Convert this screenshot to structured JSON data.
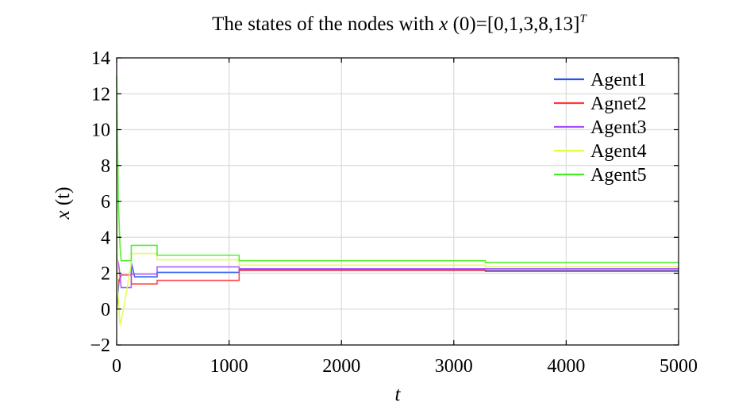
{
  "chart_data": {
    "type": "line",
    "title_main": "The states of the nodes with ",
    "title_var": "x",
    "title_rest": " (0)=[0,1,3,8,13]",
    "title_sup": "T",
    "xlabel": "t",
    "ylabel_var": "x",
    "ylabel_rest": " (t)",
    "xlim": [
      0,
      5000
    ],
    "ylim": [
      -2,
      14
    ],
    "xticks": [
      0,
      1000,
      2000,
      3000,
      4000,
      5000
    ],
    "yticks": [
      -2,
      0,
      2,
      4,
      6,
      8,
      10,
      12,
      14
    ],
    "ytick_labels": [
      "−2",
      "0",
      "2",
      "4",
      "6",
      "8",
      "10",
      "12",
      "14"
    ],
    "grid": true,
    "legend_position": "top-right",
    "series": [
      {
        "name": "Agent1",
        "color": "#2255ee",
        "points": [
          [
            0,
            0
          ],
          [
            20,
            1.5
          ],
          [
            40,
            1.9
          ],
          [
            130,
            1.9
          ],
          [
            130,
            2.6
          ],
          [
            160,
            1.8
          ],
          [
            360,
            1.8
          ],
          [
            360,
            2.05
          ],
          [
            1090,
            2.05
          ],
          [
            1090,
            2.2
          ],
          [
            3280,
            2.2
          ],
          [
            3280,
            2.15
          ],
          [
            5000,
            2.15
          ]
        ]
      },
      {
        "name": "Agnet2",
        "color": "#ff3a3a",
        "points": [
          [
            0,
            1
          ],
          [
            20,
            1.6
          ],
          [
            40,
            1.9
          ],
          [
            130,
            1.9
          ],
          [
            130,
            1.4
          ],
          [
            360,
            1.4
          ],
          [
            360,
            1.6
          ],
          [
            1090,
            1.6
          ],
          [
            1090,
            2.15
          ],
          [
            3280,
            2.15
          ],
          [
            3280,
            2.1
          ],
          [
            5000,
            2.1
          ]
        ]
      },
      {
        "name": "Agent3",
        "color": "#a64dff",
        "points": [
          [
            0,
            3
          ],
          [
            20,
            2.4
          ],
          [
            40,
            1.2
          ],
          [
            130,
            1.2
          ],
          [
            130,
            1.95
          ],
          [
            360,
            1.95
          ],
          [
            360,
            2.35
          ],
          [
            1090,
            2.35
          ],
          [
            1090,
            2.25
          ],
          [
            3280,
            2.25
          ],
          [
            3280,
            2.25
          ],
          [
            5000,
            2.25
          ]
        ]
      },
      {
        "name": "Agent4",
        "color": "#ddff44",
        "points": [
          [
            0,
            8
          ],
          [
            10,
            1.0
          ],
          [
            30,
            -0.9
          ],
          [
            55,
            -0.2
          ],
          [
            130,
            2.5
          ],
          [
            130,
            3.1
          ],
          [
            360,
            3.1
          ],
          [
            360,
            2.75
          ],
          [
            1090,
            2.75
          ],
          [
            1090,
            2.45
          ],
          [
            3280,
            2.45
          ],
          [
            3280,
            2.35
          ],
          [
            5000,
            2.35
          ]
        ]
      },
      {
        "name": "Agent5",
        "color": "#44ee22",
        "points": [
          [
            0,
            13
          ],
          [
            15,
            6.0
          ],
          [
            30,
            3.5
          ],
          [
            40,
            2.7
          ],
          [
            130,
            2.7
          ],
          [
            130,
            3.55
          ],
          [
            360,
            3.55
          ],
          [
            360,
            3.0
          ],
          [
            1090,
            3.0
          ],
          [
            1090,
            2.7
          ],
          [
            3280,
            2.7
          ],
          [
            3280,
            2.6
          ],
          [
            5000,
            2.6
          ]
        ]
      }
    ]
  }
}
